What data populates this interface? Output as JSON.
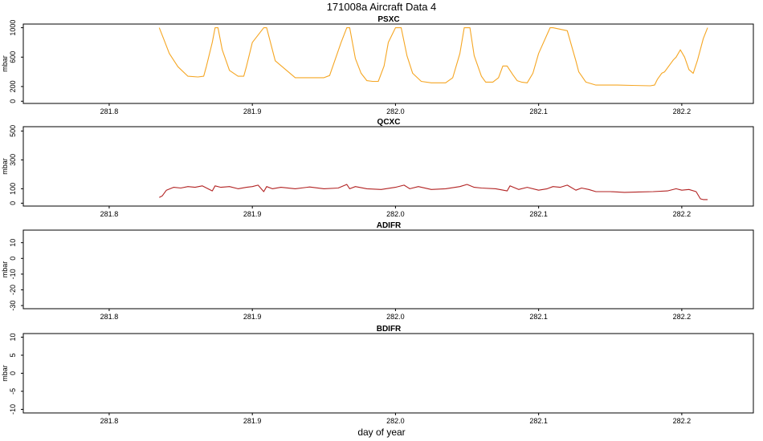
{
  "figure": {
    "title": "171008a   Aircraft Data 4",
    "xlabel": "day of year"
  },
  "chart_data": [
    {
      "type": "line",
      "title": "PSXC",
      "ylabel": "mbar",
      "xlim": [
        281.74,
        282.25
      ],
      "ylim": [
        -30,
        1050
      ],
      "xticks": [
        281.8,
        281.9,
        282.0,
        282.1,
        282.2
      ],
      "xtick_labels": [
        "281.8",
        "281.9",
        "282.0",
        "282.1",
        "282.2"
      ],
      "yticks": [
        0,
        200,
        600,
        1000
      ],
      "ytick_labels": [
        "0",
        "200",
        "600",
        "1000"
      ],
      "grid": false,
      "series": [
        {
          "color": "#f5a623",
          "x": [
            281.835,
            281.838,
            281.842,
            281.848,
            281.855,
            281.862,
            281.866,
            281.868,
            281.872,
            281.874,
            281.876,
            281.879,
            281.884,
            281.89,
            281.894,
            281.896,
            281.9,
            281.908,
            281.91,
            281.916,
            281.93,
            281.95,
            281.954,
            281.962,
            281.966,
            281.968,
            281.972,
            281.976,
            281.98,
            281.984,
            281.988,
            281.992,
            281.995,
            282.0,
            282.004,
            282.008,
            282.012,
            282.018,
            282.025,
            282.035,
            282.04,
            282.045,
            282.048,
            282.052,
            282.055,
            282.06,
            282.063,
            282.068,
            282.072,
            282.075,
            282.078,
            282.082,
            282.085,
            282.088,
            282.092,
            282.096,
            282.1,
            282.108,
            282.11,
            282.12,
            282.126,
            282.128,
            282.133,
            282.14,
            282.155,
            282.165,
            282.178,
            282.181,
            282.183,
            282.186,
            282.188,
            282.191,
            282.194,
            282.196,
            282.199,
            282.202,
            282.205,
            282.208,
            282.211,
            282.215,
            282.218
          ],
          "y": [
            1000,
            850,
            650,
            470,
            340,
            330,
            340,
            480,
            800,
            1000,
            1000,
            700,
            420,
            340,
            340,
            480,
            800,
            1000,
            1000,
            550,
            320,
            320,
            350,
            800,
            1000,
            1000,
            580,
            380,
            280,
            270,
            270,
            480,
            800,
            1000,
            1000,
            620,
            380,
            270,
            250,
            250,
            320,
            650,
            1000,
            1000,
            620,
            340,
            260,
            260,
            320,
            480,
            480,
            360,
            280,
            260,
            250,
            380,
            650,
            1000,
            1000,
            960,
            550,
            400,
            260,
            220,
            220,
            215,
            210,
            220,
            300,
            380,
            400,
            480,
            560,
            600,
            700,
            600,
            430,
            380,
            560,
            850,
            1000
          ]
        }
      ]
    },
    {
      "type": "line",
      "title": "QCXC",
      "ylabel": "mbar",
      "xlim": [
        281.74,
        282.25
      ],
      "ylim": [
        -20,
        530
      ],
      "xticks": [
        281.8,
        281.9,
        282.0,
        282.1,
        282.2
      ],
      "xtick_labels": [
        "281.8",
        "281.9",
        "282.0",
        "282.1",
        "282.2"
      ],
      "yticks": [
        0,
        100,
        300,
        500
      ],
      "ytick_labels": [
        "0",
        "100",
        "300",
        "500"
      ],
      "grid": false,
      "series": [
        {
          "color": "#b22222",
          "x": [
            281.835,
            281.837,
            281.84,
            281.845,
            281.85,
            281.855,
            281.86,
            281.865,
            281.872,
            281.874,
            281.878,
            281.884,
            281.89,
            281.896,
            281.9,
            281.904,
            281.908,
            281.91,
            281.914,
            281.92,
            281.93,
            281.94,
            281.95,
            281.96,
            281.966,
            281.968,
            281.972,
            281.98,
            281.99,
            282.0,
            282.006,
            282.01,
            282.016,
            282.025,
            282.035,
            282.045,
            282.05,
            282.055,
            282.06,
            282.07,
            282.078,
            282.08,
            282.086,
            282.092,
            282.1,
            282.106,
            282.11,
            282.115,
            282.12,
            282.126,
            282.13,
            282.135,
            282.14,
            282.15,
            282.16,
            282.17,
            282.18,
            282.19,
            282.196,
            282.2,
            282.205,
            282.21,
            282.213,
            282.215,
            282.218
          ],
          "y": [
            40,
            50,
            90,
            110,
            105,
            115,
            110,
            120,
            85,
            120,
            110,
            115,
            100,
            110,
            115,
            125,
            80,
            115,
            100,
            110,
            100,
            112,
            100,
            105,
            130,
            100,
            115,
            100,
            95,
            110,
            125,
            100,
            115,
            95,
            100,
            115,
            130,
            110,
            105,
            100,
            85,
            120,
            95,
            110,
            90,
            100,
            115,
            110,
            125,
            90,
            105,
            95,
            80,
            80,
            75,
            78,
            80,
            85,
            100,
            90,
            95,
            80,
            30,
            25,
            25
          ]
        }
      ]
    },
    {
      "type": "line",
      "title": "ADIFR",
      "ylabel": "mbar",
      "xlim": [
        281.74,
        282.25
      ],
      "ylim": [
        -32,
        18
      ],
      "xticks": [
        281.8,
        281.9,
        282.0,
        282.1,
        282.2
      ],
      "xtick_labels": [
        "281.8",
        "281.9",
        "282.0",
        "282.1",
        "282.2"
      ],
      "yticks": [
        -30,
        -20,
        -10,
        0,
        10
      ],
      "ytick_labels": [
        "-30",
        "-20",
        "-10",
        "0",
        "10"
      ],
      "grid": false,
      "series": []
    },
    {
      "type": "line",
      "title": "BDIFR",
      "ylabel": "mbar",
      "xlim": [
        281.74,
        282.25
      ],
      "ylim": [
        -11,
        11
      ],
      "xticks": [
        281.8,
        281.9,
        282.0,
        282.1,
        282.2
      ],
      "xtick_labels": [
        "281.8",
        "281.9",
        "282.0",
        "282.1",
        "282.2"
      ],
      "yticks": [
        -10,
        -5,
        0,
        5,
        10
      ],
      "ytick_labels": [
        "-10",
        "-5",
        "0",
        "5",
        "10"
      ],
      "grid": false,
      "series": []
    }
  ]
}
